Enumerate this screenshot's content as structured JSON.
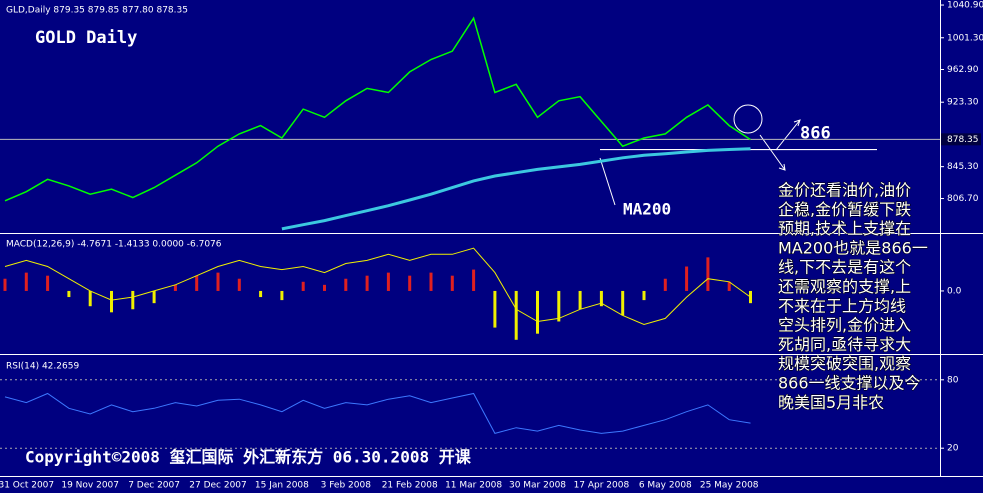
{
  "chart_data": [
    {
      "type": "line",
      "header": "GLD,Daily  879.35 879.85 877.80 878.35",
      "title": "GOLD Daily",
      "ylim": [
        765,
        1047
      ],
      "yticks": [
        {
          "value": 1040.9,
          "label": "1040.90"
        },
        {
          "value": 1001.3,
          "label": "1001.30"
        },
        {
          "value": 962.9,
          "label": "962.90"
        },
        {
          "value": 923.3,
          "label": "923.30"
        },
        {
          "value": 845.3,
          "label": "845.30"
        },
        {
          "value": 806.7,
          "label": "806.70"
        }
      ],
      "last_price": 878.35,
      "level": {
        "value": 866,
        "label": "866"
      },
      "series": [
        {
          "color": "#00ff00",
          "values": [
            804,
            815,
            830,
            822,
            812,
            818,
            808,
            820,
            835,
            850,
            870,
            885,
            895,
            880,
            915,
            905,
            925,
            940,
            935,
            960,
            975,
            985,
            1025,
            935,
            945,
            905,
            925,
            930,
            900,
            870,
            880,
            885,
            905,
            920,
            895,
            878
          ]
        },
        {
          "name": "MA200",
          "color": "#3cc8e0",
          "values": [
            null,
            null,
            null,
            null,
            null,
            null,
            null,
            null,
            null,
            null,
            null,
            null,
            null,
            770,
            775,
            780,
            786,
            792,
            798,
            805,
            812,
            820,
            828,
            834,
            838,
            842,
            845,
            848,
            852,
            856,
            859,
            861,
            863,
            865,
            866,
            867
          ]
        }
      ],
      "note_lines": [
        "金价还看油价,油价",
        "企稳,金价暂缓下跌",
        "预期,技术上支撑在",
        "MA200也就是866一",
        "线,下不去是有这个",
        "还需观察的支撑,上",
        "不来在于上方均线",
        "空头排列,金价进入",
        "死胡同,亟待寻求大",
        "规模突破突围,观察",
        "866一线支撑以及今",
        "晚美国5月非农"
      ]
    },
    {
      "type": "bar",
      "header": "MACD(12,26,9) -4.7671 -1.4133 0.0000 -6.7076",
      "ylim": [
        -20,
        18
      ],
      "yticks": [
        {
          "value": 0,
          "label": "0.0"
        }
      ],
      "colors": {
        "positive": "#e02020",
        "negative": "#f0f000"
      },
      "values": [
        4,
        6,
        5,
        -2,
        -5,
        -7,
        -6,
        -4,
        2,
        5,
        6,
        4,
        -2,
        -3,
        3,
        2,
        4,
        5,
        6,
        5,
        6,
        5,
        7,
        -12,
        -16,
        -14,
        -10,
        -6,
        -5,
        -8,
        -3,
        4,
        8,
        11,
        3,
        -4
      ],
      "signal": {
        "color": "#f0f000",
        "values": [
          8,
          10,
          8,
          4,
          0,
          -3,
          -2,
          0,
          2,
          5,
          8,
          10,
          8,
          7,
          8,
          6,
          9,
          10,
          12,
          10,
          12,
          12,
          14,
          6,
          -6,
          -10,
          -9,
          -6,
          -4,
          -8,
          -11,
          -9,
          -2,
          4,
          3,
          -2
        ]
      }
    },
    {
      "type": "line",
      "header": "RSI(14) 42.2659",
      "ylim": [
        0,
        100
      ],
      "yticks": [
        20,
        80
      ],
      "color": "#3c78ff",
      "values": [
        65,
        60,
        68,
        55,
        50,
        58,
        52,
        55,
        60,
        57,
        62,
        63,
        58,
        52,
        62,
        55,
        60,
        58,
        63,
        66,
        60,
        64,
        68,
        33,
        38,
        35,
        40,
        36,
        33,
        35,
        40,
        45,
        52,
        58,
        45,
        42
      ],
      "categories": [
        null,
        "31 Oct 2007",
        null,
        null,
        "19 Nov 2007",
        null,
        null,
        "7 Dec 2007",
        null,
        null,
        "27 Dec 2007",
        null,
        null,
        "15 Jan 2008",
        null,
        null,
        "3 Feb 2008",
        null,
        null,
        "21 Feb 2008",
        null,
        null,
        "11 Mar 2008",
        null,
        null,
        "30 Mar 2008",
        null,
        null,
        "17 Apr 2008",
        null,
        null,
        "6 May 2008",
        null,
        null,
        "25 May 2008",
        null
      ]
    }
  ],
  "copyright": "Copyright©2008 玺汇国际 外汇新东方 06.30.2008 开课"
}
